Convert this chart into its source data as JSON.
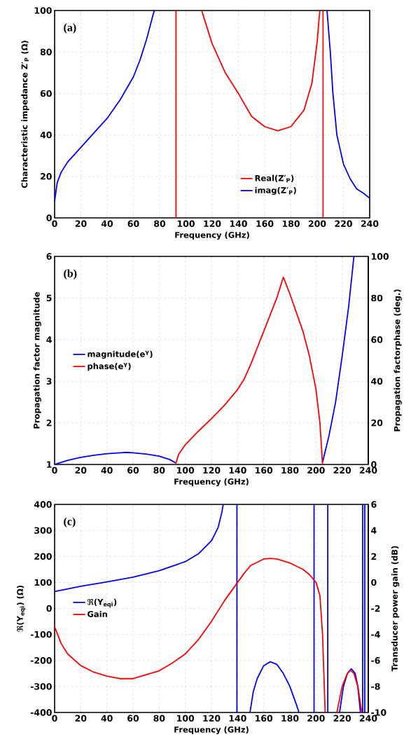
{
  "chart_data": [
    {
      "type": "line",
      "annotations": [
        "(a)"
      ],
      "xlabel": "Frequency (GHz)",
      "ylabel": "Characteristic impedance Z′$_{P}$ (Ω)",
      "xlim": [
        0,
        240
      ],
      "ylim": [
        0,
        100
      ],
      "xticks": [
        0,
        20,
        40,
        60,
        80,
        100,
        120,
        140,
        160,
        180,
        200,
        220,
        240
      ],
      "yticks": [
        0,
        20,
        40,
        60,
        80,
        100
      ],
      "grid": true,
      "legend": "bottom right",
      "series": [
        {
          "name": "Real(Z′$_{P}$)",
          "color": "#ff0000",
          "x": [
            92.5,
            92.5,
            null,
            112,
            120,
            130,
            140,
            150,
            160,
            170,
            180,
            190,
            196,
            200,
            202,
            null,
            204.5,
            204.5
          ],
          "values": [
            0,
            100,
            null,
            100,
            84,
            70,
            60,
            49,
            44,
            42,
            44,
            52,
            65,
            85,
            100,
            null,
            100,
            0
          ]
        },
        {
          "name": "imag(Z′$_{P}$)",
          "color": "#0000ff",
          "x": [
            0,
            2,
            5,
            10,
            20,
            30,
            40,
            50,
            60,
            65,
            70,
            75,
            76,
            null,
            207.5,
            210,
            212,
            215,
            220,
            225,
            230,
            235,
            240
          ],
          "values": [
            8,
            17,
            22,
            27,
            34,
            41,
            48,
            57,
            68,
            76,
            86,
            98,
            100,
            null,
            100,
            80,
            60,
            40,
            26,
            19,
            14,
            12,
            9.5
          ]
        }
      ]
    },
    {
      "type": "line",
      "annotations": [
        "(b)"
      ],
      "xlabel": "Frequency (GHz)",
      "ylabel": "Propagation factor magnitude",
      "y2label": "Propagation factorphase (deg.)",
      "xlim": [
        0,
        240
      ],
      "ylim": [
        1,
        6
      ],
      "y2lim": [
        0,
        100
      ],
      "xticks": [
        0,
        20,
        40,
        60,
        80,
        100,
        120,
        140,
        160,
        180,
        200,
        220,
        240
      ],
      "yticks": [
        1,
        2,
        3,
        4,
        5,
        6
      ],
      "y2ticks": [
        0,
        20,
        40,
        60,
        80,
        100
      ],
      "grid": true,
      "legend": "left",
      "series": [
        {
          "name": "magnitude(e$^{γ}$)",
          "color": "#0000ff",
          "x": [
            0,
            10,
            20,
            30,
            40,
            50,
            55,
            60,
            70,
            80,
            88,
            92.5,
            null,
            205,
            210,
            215,
            220,
            225,
            229
          ],
          "values": [
            1,
            1.1,
            1.17,
            1.22,
            1.26,
            1.28,
            1.29,
            1.28,
            1.25,
            1.2,
            1.12,
            1.04,
            null,
            1.05,
            1.7,
            2.5,
            3.6,
            4.8,
            6
          ]
        },
        {
          "name": "phase(e$^{γ}$)",
          "color": "#ff0000",
          "axis": "y2",
          "x": [
            92.5,
            95,
            100,
            110,
            120,
            130,
            140,
            145,
            150,
            160,
            170,
            175,
            180,
            190,
            195,
            200,
            203,
            205
          ],
          "values": [
            0,
            5,
            9.5,
            16,
            22,
            28.5,
            36,
            41,
            48,
            64,
            80,
            90,
            82,
            64,
            52,
            36,
            20,
            0
          ]
        }
      ]
    },
    {
      "type": "line",
      "annotations": [
        "(c)"
      ],
      "xlabel": "Frequency (GHz)",
      "ylabel": "ℜ(Y$_{eqi}$) (Ω)",
      "y2label": "Transducer power gain (dB)",
      "xlim": [
        0,
        240
      ],
      "ylim": [
        -400,
        400
      ],
      "y2lim": [
        -10,
        6
      ],
      "xticks": [
        0,
        20,
        40,
        60,
        80,
        100,
        120,
        140,
        160,
        180,
        200,
        220,
        240
      ],
      "yticks": [
        -400,
        -300,
        -200,
        -100,
        0,
        100,
        200,
        300,
        400
      ],
      "y2ticks": [
        -10,
        -8,
        -6,
        -4,
        -2,
        0,
        2,
        4,
        6
      ],
      "grid": true,
      "legend": "left",
      "series": [
        {
          "name": "ℜ(Y$_{eqi}$)",
          "color": "#0000ff",
          "x": [
            0,
            10,
            20,
            40,
            60,
            80,
            100,
            110,
            120,
            125,
            128,
            129,
            null,
            139.5,
            139.5,
            null,
            149.5,
            152,
            155,
            160,
            165,
            170,
            175,
            180,
            185,
            187,
            null,
            198.5,
            198.5,
            null,
            209,
            209,
            null,
            218,
            221,
            224,
            227,
            230,
            232,
            234,
            null,
            235.7,
            235.7,
            null,
            237.3,
            237.3
          ],
          "values": [
            65,
            75,
            85,
            102,
            120,
            145,
            180,
            210,
            260,
            310,
            370,
            400,
            null,
            -400,
            400,
            null,
            -400,
            -320,
            -270,
            -220,
            -205,
            -215,
            -250,
            -300,
            -370,
            -400,
            null,
            400,
            -400,
            null,
            -400,
            400,
            null,
            -400,
            -300,
            -250,
            -232,
            -250,
            -300,
            -400,
            null,
            -400,
            400,
            null,
            400,
            -400
          ]
        },
        {
          "name": "Gain",
          "color": "#ff0000",
          "axis": "y2",
          "x": [
            0,
            5,
            10,
            20,
            30,
            40,
            50,
            55,
            60,
            70,
            80,
            90,
            100,
            110,
            120,
            130,
            140,
            145,
            150,
            160,
            165,
            170,
            180,
            190,
            195,
            200,
            203,
            205,
            206,
            207,
            null,
            216,
            220,
            224,
            226.5,
            229,
            232,
            235
          ],
          "values": [
            -3.4,
            -4.7,
            -5.5,
            -6.4,
            -6.9,
            -7.2,
            -7.4,
            -7.4,
            -7.4,
            -7.1,
            -6.8,
            -6.2,
            -5.5,
            -4.4,
            -3,
            -1.4,
            0,
            0.7,
            1.3,
            1.8,
            1.85,
            1.8,
            1.5,
            1,
            0.6,
            0,
            -1,
            -4,
            -7,
            -10,
            null,
            -10,
            -8,
            -7,
            -6.76,
            -7,
            -8,
            -10
          ]
        }
      ]
    }
  ]
}
